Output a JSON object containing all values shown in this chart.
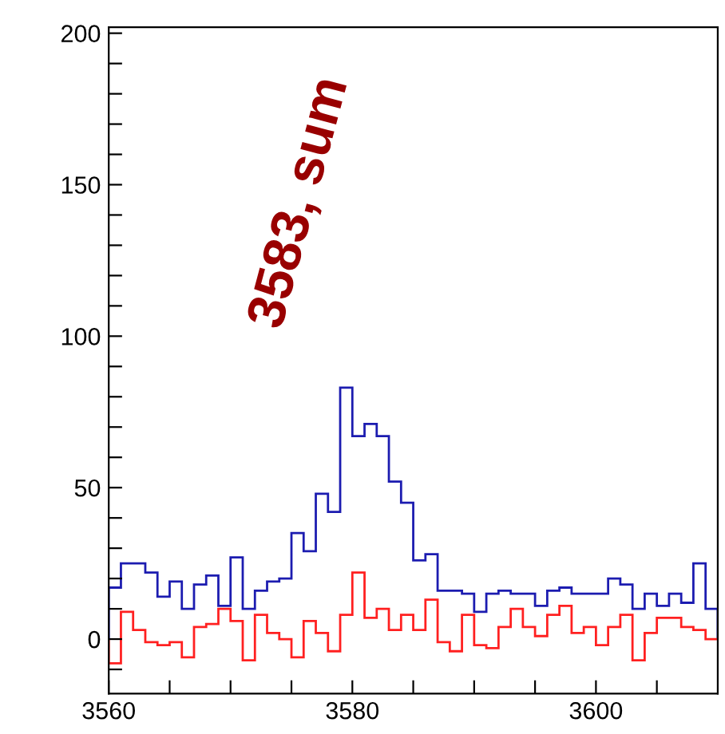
{
  "chart_data": {
    "type": "histogram",
    "bins": [
      3560,
      3561,
      3562,
      3563,
      3564,
      3565,
      3566,
      3567,
      3568,
      3569,
      3570,
      3571,
      3572,
      3573,
      3574,
      3575,
      3576,
      3577,
      3578,
      3579,
      3580,
      3581,
      3582,
      3583,
      3584,
      3585,
      3586,
      3587,
      3588,
      3589,
      3590,
      3591,
      3592,
      3593,
      3594,
      3595,
      3596,
      3597,
      3598,
      3599,
      3600,
      3601,
      3602,
      3603,
      3604,
      3605,
      3606,
      3607,
      3608,
      3609,
      3610
    ],
    "series": [
      {
        "color": "#1c1cb0",
        "values": [
          17,
          25,
          25,
          22,
          14,
          19,
          10,
          18,
          21,
          11,
          27,
          10,
          16,
          19,
          20,
          35,
          29,
          48,
          42,
          83,
          67,
          71,
          67,
          52,
          45,
          26,
          28,
          16,
          16,
          15,
          9,
          15,
          16,
          15,
          15,
          11,
          16,
          17,
          15,
          15,
          15,
          20,
          18,
          10,
          15,
          11,
          15,
          12,
          25,
          10
        ]
      },
      {
        "color": "#ff2020",
        "values": [
          -8,
          9,
          3,
          -1,
          -2,
          -1,
          -6,
          4,
          5,
          10,
          6,
          -7,
          8,
          2,
          0,
          -6,
          6,
          2,
          -4,
          8,
          22,
          7,
          10,
          3,
          8,
          3,
          13,
          -1,
          -4,
          8,
          -2,
          -3,
          4,
          10,
          4,
          1,
          8,
          11,
          2,
          4,
          -2,
          4,
          8,
          -7,
          2,
          7,
          7,
          4,
          3,
          0
        ]
      }
    ],
    "annotations": [
      "3583, sum"
    ],
    "xlim": [
      3560,
      3610
    ],
    "ylim": [
      -18,
      202
    ],
    "xticks": [
      3560,
      {
        "value": 3565,
        "label": null
      },
      {
        "value": 3570,
        "label": null
      },
      {
        "value": 3575,
        "label": null
      },
      3580,
      {
        "value": 3585,
        "label": null
      },
      {
        "value": 3590,
        "label": null
      },
      {
        "value": 3595,
        "label": null
      },
      3600,
      {
        "value": 3605,
        "label": null
      }
    ],
    "yticks": [
      {
        "value": -10,
        "label": null
      },
      0,
      {
        "value": 10,
        "label": null
      },
      {
        "value": 20,
        "label": null
      },
      {
        "value": 30,
        "label": null
      },
      {
        "value": 40,
        "label": null
      },
      50,
      {
        "value": 60,
        "label": null
      },
      {
        "value": 70,
        "label": null
      },
      {
        "value": 80,
        "label": null
      },
      {
        "value": 90,
        "label": null
      },
      100,
      {
        "value": 110,
        "label": null
      },
      {
        "value": 120,
        "label": null
      },
      {
        "value": 130,
        "label": null
      },
      {
        "value": 140,
        "label": null
      },
      150,
      {
        "value": 160,
        "label": null
      },
      {
        "value": 170,
        "label": null
      },
      {
        "value": 180,
        "label": null
      },
      {
        "value": 190,
        "label": null
      },
      200
    ],
    "grid": false
  }
}
